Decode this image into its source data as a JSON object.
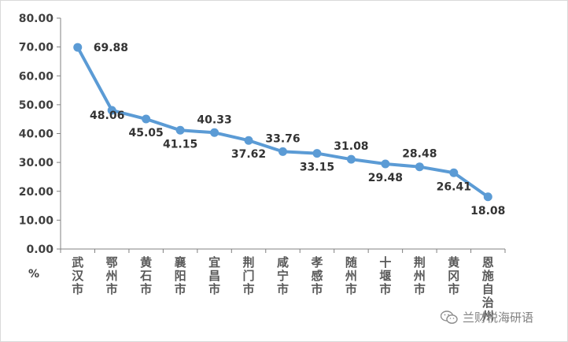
{
  "chart_data": {
    "type": "line",
    "categories": [
      "武汉市",
      "鄂州市",
      "黄石市",
      "襄阳市",
      "宜昌市",
      "荆门市",
      "咸宁市",
      "孝感市",
      "随州市",
      "十堰市",
      "荆州市",
      "黄冈市",
      "恩施自治州"
    ],
    "series": [
      {
        "values": [
          69.88,
          48.06,
          45.05,
          41.15,
          40.33,
          37.62,
          33.76,
          33.15,
          31.08,
          29.48,
          28.48,
          26.41,
          18.08
        ]
      }
    ],
    "data_labels": [
      "69.88",
      "48.06",
      "45.05",
      "41.15",
      "40.33",
      "37.62",
      "33.76",
      "33.15",
      "31.08",
      "29.48",
      "28.48",
      "26.41",
      "18.08"
    ],
    "y_ticks": [
      "0.00",
      "10.00",
      "20.00",
      "30.00",
      "40.00",
      "50.00",
      "60.00",
      "70.00",
      "80.00"
    ],
    "ylim": [
      0,
      80
    ],
    "ylabel": "%",
    "grid": false,
    "legend": "none",
    "line_color": "#5b9bd5"
  },
  "watermark": "兰财税海研语",
  "watermark_icon": "wechat-icon"
}
